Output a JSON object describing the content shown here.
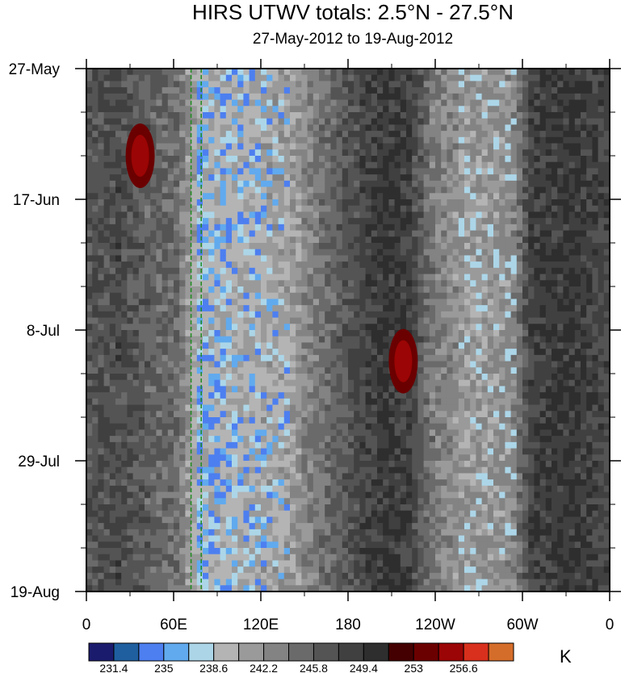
{
  "chart_data": {
    "type": "heatmap",
    "title": "HIRS UTWV totals: 2.5°N - 27.5°N",
    "subtitle": "27-May-2012 to 19-Aug-2012",
    "xlabel": "",
    "ylabel": "",
    "x_range_deg_east": [
      0,
      360
    ],
    "x_ticks": [
      {
        "lon": 0,
        "label": "0"
      },
      {
        "lon": 60,
        "label": "60E"
      },
      {
        "lon": 120,
        "label": "120E"
      },
      {
        "lon": 180,
        "label": "180"
      },
      {
        "lon": 240,
        "label": "120W"
      },
      {
        "lon": 300,
        "label": "60W"
      },
      {
        "lon": 360,
        "label": "0"
      }
    ],
    "y_range_days": [
      0,
      84
    ],
    "y_ticks": [
      {
        "day": 0,
        "label": "27-May"
      },
      {
        "day": 21,
        "label": "17-Jun"
      },
      {
        "day": 42,
        "label": "8-Jul"
      },
      {
        "day": 63,
        "label": "29-Jul"
      },
      {
        "day": 84,
        "label": "19-Aug"
      }
    ],
    "reference_lines_lon": [
      72,
      79
    ],
    "colorbar": {
      "units": "K",
      "levels": [
        231.4,
        235,
        238.6,
        242.2,
        245.8,
        249.4,
        253,
        256.6
      ],
      "colors": [
        "#1b1b6e",
        "#1f5fa0",
        "#4d7ff0",
        "#61aaee",
        "#acd6e8",
        "#b4b4b4",
        "#9a9a9a",
        "#838383",
        "#6a6a6a",
        "#545454",
        "#404040",
        "#2e2e2e",
        "#440000",
        "#6b0000",
        "#9b0505",
        "#d8301c",
        "#d56d2a"
      ]
    },
    "features": [
      {
        "label": "moist band",
        "lon_range": [
          75,
          140
        ],
        "days": [
          0,
          84
        ],
        "min_K": 231.4
      },
      {
        "label": "warm maximum",
        "lon": 37,
        "day": 14,
        "max_K": 256.6
      },
      {
        "label": "warm maximum",
        "lon": 218,
        "day": 47,
        "max_K": 256.6
      },
      {
        "label": "moist band",
        "lon_range": [
          250,
          300
        ],
        "days": [
          0,
          84
        ],
        "min_K": 235
      }
    ]
  }
}
